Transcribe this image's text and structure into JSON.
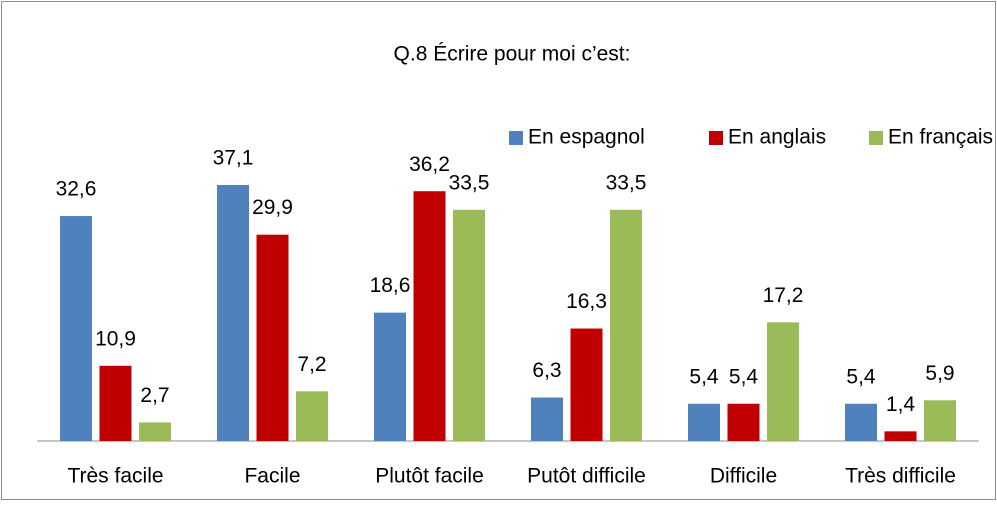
{
  "chart_data": {
    "type": "bar",
    "title": "Q.8 Écrire pour moi c’est:",
    "categories": [
      "Très facile",
      "Facile",
      "Plutôt facile",
      "Putôt difficile",
      "Difficile",
      "Très difficile"
    ],
    "series": [
      {
        "name": "En espagnol",
        "color": "#4f81bd",
        "values": [
          32.6,
          37.1,
          18.6,
          6.3,
          5.4,
          5.4
        ],
        "value_labels": [
          "32,6",
          "37,1",
          "18,6",
          "6,3",
          "5,4",
          "5,4"
        ]
      },
      {
        "name": "En anglais",
        "color": "#c00000",
        "values": [
          10.9,
          29.9,
          36.2,
          16.3,
          5.4,
          1.4
        ],
        "value_labels": [
          "10,9",
          "29,9",
          "36,2",
          "16,3",
          "5,4",
          "1,4"
        ]
      },
      {
        "name": "En français",
        "color": "#9bbb59",
        "values": [
          2.7,
          7.2,
          33.5,
          33.5,
          17.2,
          5.9
        ],
        "value_labels": [
          "2,7",
          "7,2",
          "33,5",
          "33,5",
          "17,2",
          "5,9"
        ]
      }
    ],
    "ylim": [
      0,
      40
    ],
    "legend": "top-right"
  }
}
